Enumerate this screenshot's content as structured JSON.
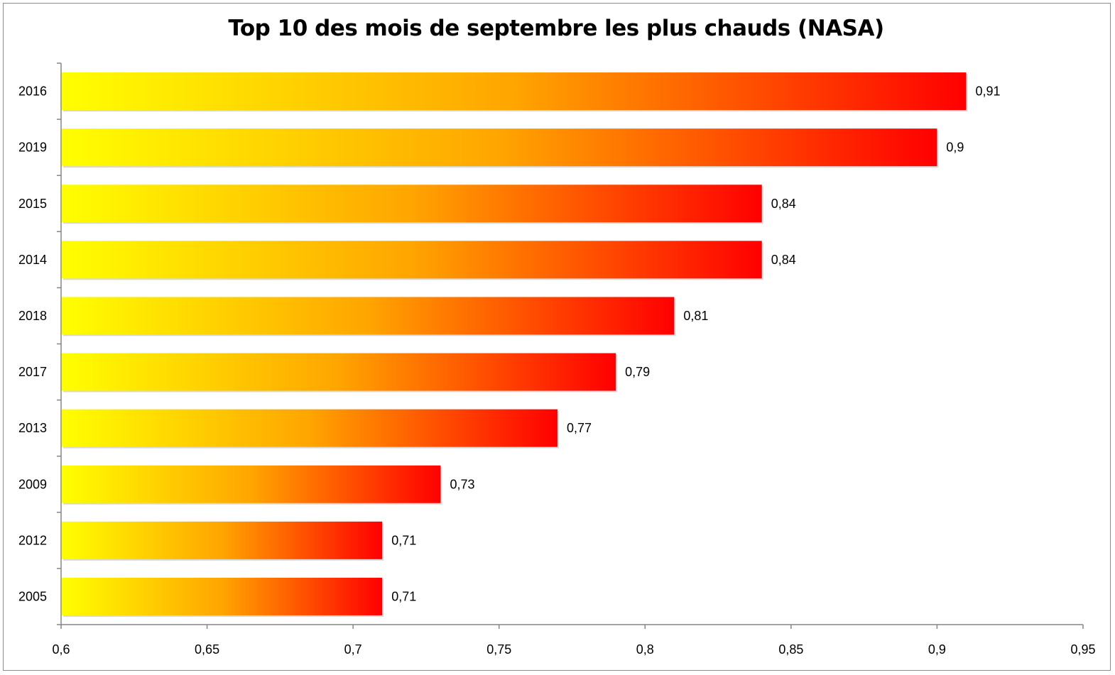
{
  "chart_data": {
    "type": "bar",
    "orientation": "horizontal",
    "title": "Top 10 des mois de septembre les plus chauds (NASA)",
    "categories": [
      "2016",
      "2019",
      "2015",
      "2014",
      "2018",
      "2017",
      "2013",
      "2009",
      "2012",
      "2005"
    ],
    "values": [
      0.91,
      0.9,
      0.84,
      0.84,
      0.81,
      0.79,
      0.77,
      0.73,
      0.71,
      0.71
    ],
    "data_labels": [
      "0,91",
      "0,9",
      "0,84",
      "0,84",
      "0,81",
      "0,79",
      "0,77",
      "0,73",
      "0,71",
      "0,71"
    ],
    "xlim": [
      0.6,
      0.95
    ],
    "x_ticks": [
      0.6,
      0.65,
      0.7,
      0.75,
      0.8,
      0.85,
      0.9,
      0.95
    ],
    "x_tick_labels": [
      "0,6",
      "0,65",
      "0,7",
      "0,75",
      "0,8",
      "0,85",
      "0,9",
      "0,95"
    ],
    "grid": false,
    "legend": "none",
    "bar_gradient": [
      "#ffff00",
      "#ffa500",
      "#ff0000"
    ]
  }
}
